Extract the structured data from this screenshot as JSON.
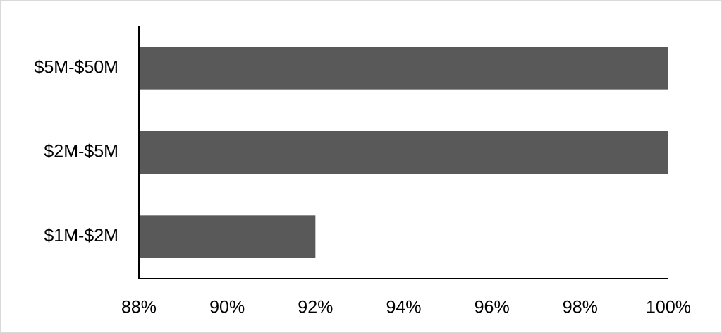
{
  "chart_data": {
    "type": "bar",
    "orientation": "horizontal",
    "categories": [
      "$5M-$50M",
      "$2M-$5M",
      "$1M-$2M"
    ],
    "values": [
      100,
      100,
      92
    ],
    "color": "#595959",
    "xlim": [
      88,
      100
    ],
    "xticks": [
      {
        "value": 88,
        "label": "88%"
      },
      {
        "value": 90,
        "label": "90%"
      },
      {
        "value": 92,
        "label": "92%"
      },
      {
        "value": 94,
        "label": "94%"
      },
      {
        "value": 96,
        "label": "96%"
      },
      {
        "value": 98,
        "label": "98%"
      },
      {
        "value": 100,
        "label": "100%"
      }
    ],
    "grid": false
  }
}
